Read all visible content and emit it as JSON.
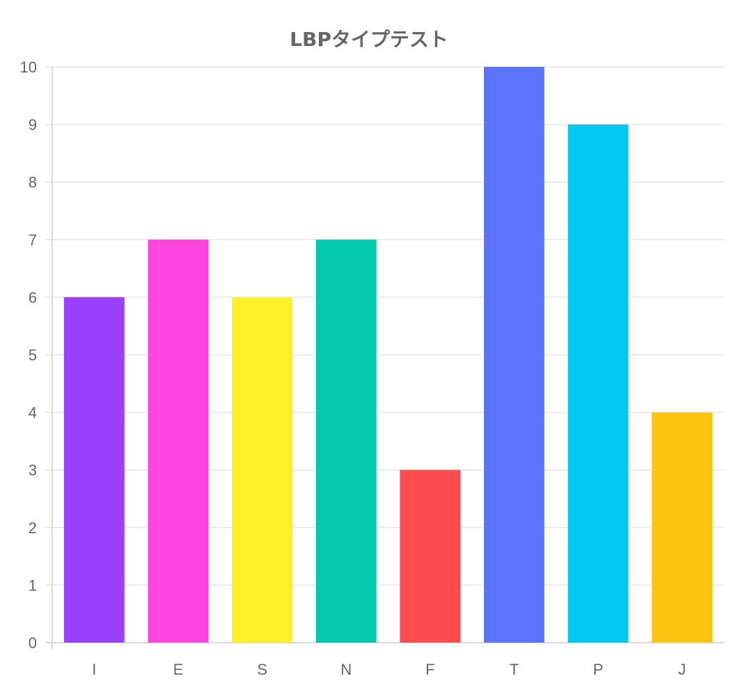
{
  "chart_data": {
    "type": "bar",
    "title": "LBPタイプテスト",
    "xlabel": "",
    "ylabel": "",
    "categories": [
      "I",
      "E",
      "S",
      "N",
      "F",
      "T",
      "P",
      "J"
    ],
    "values": [
      6,
      7,
      6,
      7,
      3,
      10,
      9,
      4
    ],
    "colors": [
      "#9b40ff",
      "#ff44df",
      "#fff026",
      "#00c9ad",
      "#ff4d4f",
      "#5a74ff",
      "#00c8f0",
      "#ffc312"
    ],
    "ylim": [
      0,
      10
    ],
    "yticks": [
      "0",
      "1",
      "2",
      "3",
      "4",
      "5",
      "6",
      "7",
      "8",
      "9",
      "10"
    ],
    "grid": true,
    "legend": "none"
  }
}
